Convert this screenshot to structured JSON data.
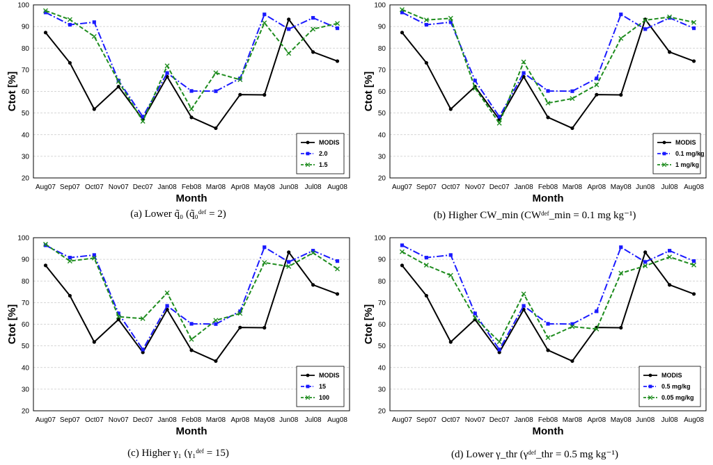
{
  "colors": {
    "modis": "#000000",
    "series2": "#1a1aff",
    "series3": "#1e8c1e",
    "grid": "#c8c8c8"
  },
  "chart_data": [
    {
      "type": "line",
      "caption": "(a)  Lower q̃₀ (q̃₀ᵈᵉᶠ = 2)",
      "categories": [
        "Aug07",
        "Sep07",
        "Oct07",
        "Nov07",
        "Dec07",
        "Jan08",
        "Feb08",
        "Mar08",
        "Apr08",
        "May08",
        "Jun08",
        "Jul08",
        "Aug08"
      ],
      "xlabel": "Month",
      "ylabel": "Ctot [%]",
      "ylim": [
        20,
        100
      ],
      "yticks": [
        20,
        30,
        40,
        50,
        60,
        70,
        80,
        90,
        100
      ],
      "grid": true,
      "legend_position": "bottom-right",
      "series": [
        {
          "name": "MODIS",
          "values": [
            87.2,
            73.2,
            51.8,
            62.2,
            47.0,
            66.8,
            48.0,
            43.0,
            58.5,
            58.4,
            93.3,
            78.2,
            74.0
          ]
        },
        {
          "name": "2.0",
          "values": [
            96.5,
            90.8,
            92.0,
            65.0,
            48.3,
            68.5,
            60.2,
            60.1,
            66.0,
            95.6,
            88.8,
            94.0,
            89.2
          ]
        },
        {
          "name": "1.5",
          "values": [
            97.3,
            93.2,
            85.4,
            64.6,
            46.2,
            71.8,
            51.9,
            68.6,
            65.4,
            91.7,
            77.6,
            88.8,
            91.4
          ]
        }
      ]
    },
    {
      "type": "line",
      "caption": "(b)  Higher CW_min (CWᵈᵉᶠ_min = 0.1 mg kg⁻¹)",
      "categories": [
        "Aug07",
        "Sep07",
        "Oct07",
        "Nov07",
        "Dec07",
        "Jan08",
        "Feb08",
        "Mar08",
        "Apr08",
        "May08",
        "Jun08",
        "Jul08",
        "Aug08"
      ],
      "xlabel": "Month",
      "ylabel": "Ctot [%]",
      "ylim": [
        20,
        100
      ],
      "yticks": [
        20,
        30,
        40,
        50,
        60,
        70,
        80,
        90,
        100
      ],
      "grid": true,
      "legend_position": "bottom-right",
      "series": [
        {
          "name": "MODIS",
          "values": [
            87.2,
            73.2,
            51.8,
            62.2,
            47.0,
            66.8,
            48.0,
            43.0,
            58.5,
            58.4,
            93.3,
            78.2,
            74.0
          ]
        },
        {
          "name": "0.1 mg/kg",
          "values": [
            96.5,
            90.8,
            92.0,
            65.0,
            48.3,
            68.5,
            60.2,
            60.1,
            66.0,
            95.6,
            88.8,
            94.0,
            89.2
          ]
        },
        {
          "name": "1 mg/kg",
          "values": [
            97.8,
            93.0,
            93.8,
            61.5,
            45.3,
            73.6,
            54.6,
            56.7,
            63.0,
            84.5,
            92.9,
            94.4,
            91.9
          ]
        }
      ]
    },
    {
      "type": "line",
      "caption": "(c)  Higher γ₁ (γ₁ᵈᵉᶠ = 15)",
      "categories": [
        "Aug07",
        "Sep07",
        "Oct07",
        "Nov07",
        "Dec07",
        "Jan08",
        "Feb08",
        "Mar08",
        "Apr08",
        "May08",
        "Jun08",
        "Jul08",
        "Aug08"
      ],
      "xlabel": "Month",
      "ylabel": "Ctot [%]",
      "ylim": [
        20,
        100
      ],
      "yticks": [
        20,
        30,
        40,
        50,
        60,
        70,
        80,
        90,
        100
      ],
      "grid": true,
      "legend_position": "bottom-right",
      "series": [
        {
          "name": "MODIS",
          "values": [
            87.2,
            73.2,
            51.8,
            62.2,
            47.0,
            66.8,
            48.0,
            43.0,
            58.5,
            58.4,
            93.3,
            78.2,
            74.0
          ]
        },
        {
          "name": "15",
          "values": [
            96.5,
            90.8,
            92.0,
            65.0,
            48.3,
            68.5,
            60.2,
            60.1,
            66.0,
            95.6,
            88.8,
            94.0,
            89.2
          ]
        },
        {
          "name": "100",
          "values": [
            97.0,
            89.2,
            90.6,
            63.5,
            62.6,
            74.5,
            53.0,
            61.8,
            65.0,
            88.5,
            86.7,
            93.0,
            85.6
          ]
        }
      ]
    },
    {
      "type": "line",
      "caption": "(d)  Lower γ_thr (γᵈᵉᶠ_thr = 0.5 mg kg⁻¹)",
      "categories": [
        "Aug07",
        "Sep07",
        "Oct07",
        "Nov07",
        "Dec07",
        "Jan08",
        "Feb08",
        "Mar08",
        "Apr08",
        "May08",
        "Jun08",
        "Jul08",
        "Aug08"
      ],
      "xlabel": "Month",
      "ylabel": "Ctot [%]",
      "ylim": [
        20,
        100
      ],
      "yticks": [
        20,
        30,
        40,
        50,
        60,
        70,
        80,
        90,
        100
      ],
      "grid": true,
      "legend_position": "bottom-right",
      "series": [
        {
          "name": "MODIS",
          "values": [
            87.2,
            73.2,
            51.8,
            62.2,
            47.0,
            66.8,
            48.0,
            43.0,
            58.5,
            58.4,
            93.3,
            78.2,
            74.0
          ]
        },
        {
          "name": "0.5 mg/kg",
          "values": [
            96.5,
            90.8,
            92.0,
            65.0,
            48.3,
            68.5,
            60.2,
            60.1,
            66.0,
            95.6,
            88.8,
            94.0,
            89.2
          ]
        },
        {
          "name": "0.05 mg/kg",
          "values": [
            93.5,
            87.3,
            82.6,
            63.0,
            51.9,
            74.0,
            53.8,
            58.9,
            57.8,
            83.6,
            87.0,
            91.1,
            87.4
          ]
        }
      ]
    }
  ]
}
